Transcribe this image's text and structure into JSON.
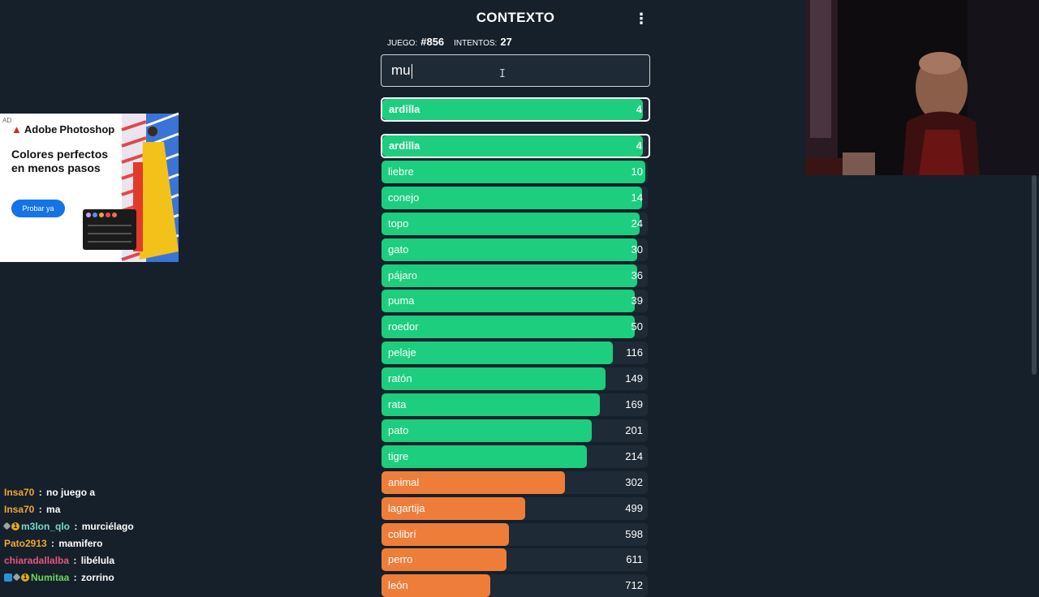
{
  "header": {
    "title": "CONTEXTO",
    "menu_icon": "more-vertical-icon",
    "game_label": "JUEGO:",
    "game_number": "#856",
    "attempts_label": "INTENTOS:",
    "attempts_count": "27"
  },
  "input": {
    "value": "mu"
  },
  "last_guess": {
    "word": "ardilla",
    "rank": "4",
    "fill": 0.98,
    "color": "green"
  },
  "guesses": [
    {
      "word": "ardilla",
      "rank": "4",
      "fill": 0.98,
      "color": "green",
      "highlight": true
    },
    {
      "word": "liebre",
      "rank": "10",
      "fill": 0.99,
      "color": "green"
    },
    {
      "word": "conejo",
      "rank": "14",
      "fill": 0.98,
      "color": "green"
    },
    {
      "word": "topo",
      "rank": "24",
      "fill": 0.97,
      "color": "green"
    },
    {
      "word": "gato",
      "rank": "30",
      "fill": 0.96,
      "color": "green"
    },
    {
      "word": "pájaro",
      "rank": "36",
      "fill": 0.96,
      "color": "green"
    },
    {
      "word": "puma",
      "rank": "39",
      "fill": 0.95,
      "color": "green"
    },
    {
      "word": "roedor",
      "rank": "50",
      "fill": 0.95,
      "color": "green"
    },
    {
      "word": "pelaje",
      "rank": "116",
      "fill": 0.87,
      "color": "green"
    },
    {
      "word": "ratón",
      "rank": "149",
      "fill": 0.84,
      "color": "green"
    },
    {
      "word": "rata",
      "rank": "169",
      "fill": 0.82,
      "color": "green"
    },
    {
      "word": "pato",
      "rank": "201",
      "fill": 0.79,
      "color": "green"
    },
    {
      "word": "tigre",
      "rank": "214",
      "fill": 0.77,
      "color": "green"
    },
    {
      "word": "animal",
      "rank": "302",
      "fill": 0.69,
      "color": "orange"
    },
    {
      "word": "lagartija",
      "rank": "499",
      "fill": 0.54,
      "color": "orange"
    },
    {
      "word": "colibrí",
      "rank": "598",
      "fill": 0.48,
      "color": "orange"
    },
    {
      "word": "perro",
      "rank": "611",
      "fill": 0.47,
      "color": "orange"
    },
    {
      "word": "león",
      "rank": "712",
      "fill": 0.41,
      "color": "orange"
    }
  ],
  "colors": {
    "green": "#1cce7e",
    "orange": "#ef7d3a",
    "background": "#15202b",
    "row_bg": "#1e2a35"
  },
  "ad": {
    "badge": "AD",
    "brand_prefix": "Adobe",
    "brand_product": "Photoshop",
    "headline": "Colores perfectos en menos pasos",
    "cta": "Probar ya"
  },
  "chat": [
    {
      "user": "Insa70",
      "color": "#f0a830",
      "badges": [],
      "message": "no juego a"
    },
    {
      "user": "Insa70",
      "color": "#f0a830",
      "badges": [],
      "message": "ma"
    },
    {
      "user": "m3lon_qlo",
      "color": "#7ad9c9",
      "badges": [
        "grey",
        "gold"
      ],
      "message": "murciélago"
    },
    {
      "user": "Pato2913",
      "color": "#f0a830",
      "badges": [],
      "message": "mamifero"
    },
    {
      "user": "chiaradallalba",
      "color": "#e8557f",
      "badges": [],
      "message": "libélula"
    },
    {
      "user": "Numitaa",
      "color": "#6cd85a",
      "badges": [
        "blue",
        "grey",
        "gold"
      ],
      "message": "zorrino"
    }
  ]
}
